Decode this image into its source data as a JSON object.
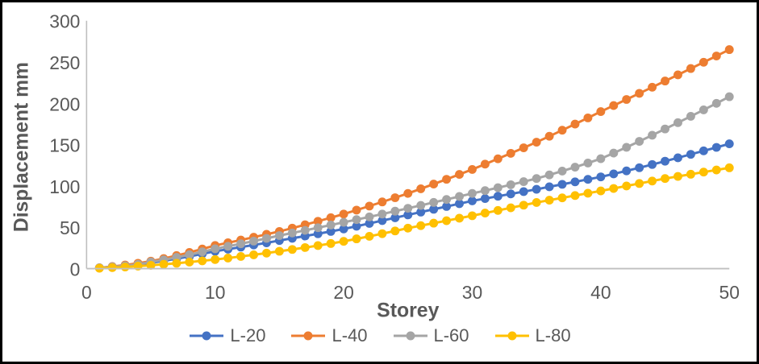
{
  "figure": {
    "background_color": "#FFFFFF",
    "border_color": "#000000",
    "text_color": "#595959",
    "axis_line_color": "#BFBFBF"
  },
  "chart_data": {
    "type": "line",
    "title": "",
    "xlabel": "Storey",
    "ylabel": "Displacement mm",
    "xlim": [
      0,
      50
    ],
    "ylim": [
      0,
      300
    ],
    "x_ticks": [
      0,
      10,
      20,
      30,
      40,
      50
    ],
    "y_ticks": [
      0,
      50,
      100,
      150,
      200,
      250,
      300
    ],
    "grid": "off",
    "legend_position": "bottom",
    "marker": "circle",
    "x": [
      1,
      2,
      3,
      4,
      5,
      6,
      7,
      8,
      9,
      10,
      11,
      12,
      13,
      14,
      15,
      16,
      17,
      18,
      19,
      20,
      21,
      22,
      23,
      24,
      25,
      26,
      27,
      28,
      29,
      30,
      31,
      32,
      33,
      34,
      35,
      36,
      37,
      38,
      39,
      40,
      41,
      42,
      43,
      44,
      45,
      46,
      47,
      48,
      49,
      50
    ],
    "series": [
      {
        "name": "L-20",
        "color": "#4472C4",
        "values": [
          1,
          2.2,
          3.6,
          5.2,
          7,
          9.4,
          12,
          14.8,
          17.8,
          21,
          23.5,
          26,
          28.6,
          31.2,
          34,
          36.7,
          39.4,
          42.2,
          45,
          48,
          51.3,
          54.7,
          58.1,
          61.5,
          65,
          68.4,
          71.8,
          75.2,
          78.6,
          82,
          84.8,
          87.6,
          90.4,
          93.2,
          96,
          99,
          102,
          105,
          108,
          111,
          114.6,
          118.3,
          122.1,
          126,
          130,
          134.1,
          138.3,
          142.5,
          146.7,
          151
        ]
      },
      {
        "name": "L-40",
        "color": "#ED7D31",
        "values": [
          1,
          2.5,
          4.4,
          6.5,
          9,
          12.2,
          15.8,
          19.6,
          23.7,
          28,
          31.3,
          34.6,
          38,
          41.5,
          45,
          49,
          53.1,
          57.3,
          61.6,
          66,
          70.8,
          75.7,
          80.7,
          85.8,
          91,
          96.6,
          102.3,
          108.1,
          114,
          120,
          126.4,
          132.9,
          139.5,
          146.2,
          153,
          160.2,
          167.5,
          174.9,
          182.4,
          190,
          197.3,
          204.7,
          212.1,
          219.5,
          227,
          234.5,
          242.1,
          249.7,
          257.3,
          265
        ]
      },
      {
        "name": "L-60",
        "color": "#A5A5A5",
        "values": [
          1,
          2.1,
          3.4,
          5.1,
          8,
          10.6,
          13.6,
          16.8,
          20.3,
          24,
          27,
          30.1,
          33.3,
          36.6,
          40,
          43.1,
          46.3,
          49.5,
          52.7,
          56,
          59.3,
          62.6,
          66,
          69.5,
          73,
          76.5,
          80.1,
          83.7,
          87.3,
          91,
          94.4,
          97.9,
          101.5,
          105.2,
          109,
          113.4,
          118,
          122.8,
          127.8,
          133,
          139.8,
          146.8,
          154,
          161.4,
          169,
          176.6,
          184.3,
          192.1,
          200,
          208
        ]
      },
      {
        "name": "L-80",
        "color": "#FFC000",
        "values": [
          0.5,
          1.2,
          2,
          3,
          4,
          5.2,
          6.5,
          7.9,
          9.4,
          11,
          12.8,
          14.7,
          16.7,
          18.8,
          21,
          23.2,
          25.5,
          27.9,
          30.4,
          33,
          36,
          39.1,
          42.3,
          45.6,
          49,
          52,
          55,
          58,
          61,
          64,
          67.2,
          70.4,
          73.6,
          76.8,
          80,
          82.8,
          85.6,
          88.4,
          91.2,
          94,
          97,
          100,
          103,
          106,
          109,
          111.6,
          114.2,
          116.8,
          119.4,
          122
        ]
      }
    ]
  }
}
